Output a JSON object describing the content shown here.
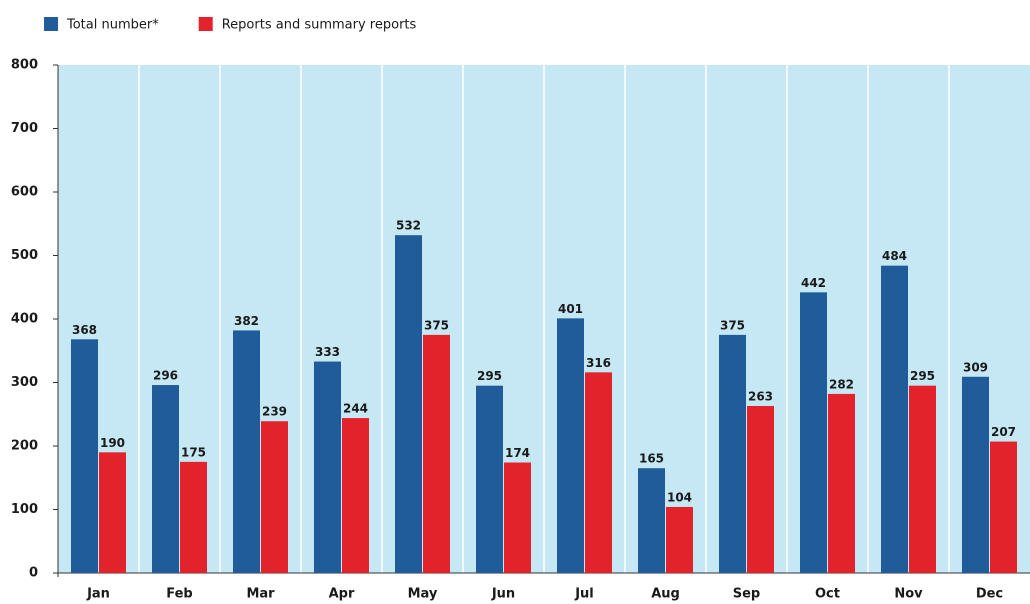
{
  "chart_data": {
    "type": "bar",
    "categories": [
      "Jan",
      "Feb",
      "Mar",
      "Apr",
      "May",
      "Jun",
      "Jul",
      "Aug",
      "Sep",
      "Oct",
      "Nov",
      "Dec"
    ],
    "series": [
      {
        "name": "Total number*",
        "color": "#1f5c99",
        "values": [
          368,
          296,
          382,
          333,
          532,
          295,
          401,
          165,
          375,
          442,
          484,
          309
        ]
      },
      {
        "name": "Reports and summary reports",
        "color": "#e3232c",
        "values": [
          190,
          175,
          239,
          244,
          375,
          174,
          316,
          104,
          263,
          282,
          295,
          207
        ]
      }
    ],
    "ylim": [
      0,
      800
    ],
    "yticks": [
      0,
      100,
      200,
      300,
      400,
      500,
      600,
      700,
      800
    ],
    "grid": true,
    "legend": "top-left",
    "background": "#c6e7f4"
  }
}
